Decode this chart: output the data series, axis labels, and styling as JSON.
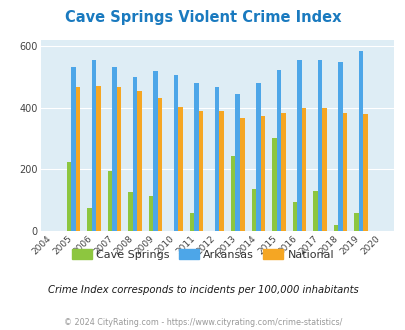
{
  "title": "Cave Springs Violent Crime Index",
  "years": [
    2004,
    2005,
    2006,
    2007,
    2008,
    2009,
    2010,
    2011,
    2012,
    2013,
    2014,
    2015,
    2016,
    2017,
    2018,
    2019,
    2020
  ],
  "cave_springs": [
    0,
    225,
    75,
    193,
    127,
    113,
    0,
    57,
    0,
    242,
    135,
    300,
    95,
    128,
    20,
    58,
    0
  ],
  "arkansas": [
    0,
    530,
    553,
    530,
    500,
    518,
    505,
    480,
    468,
    445,
    478,
    522,
    553,
    555,
    547,
    583,
    0
  ],
  "national": [
    0,
    468,
    469,
    465,
    453,
    430,
    403,
    388,
    388,
    366,
    373,
    383,
    400,
    397,
    383,
    379,
    0
  ],
  "cave_springs_color": "#8dc63f",
  "arkansas_color": "#4da6e8",
  "national_color": "#f5a623",
  "bg_color": "#deedf5",
  "ylim": [
    0,
    620
  ],
  "yticks": [
    0,
    200,
    400,
    600
  ],
  "legend_labels": [
    "Cave Springs",
    "Arkansas",
    "National"
  ],
  "subtitle": "Crime Index corresponds to incidents per 100,000 inhabitants",
  "footer": "© 2024 CityRating.com - https://www.cityrating.com/crime-statistics/",
  "title_color": "#1a7abf",
  "subtitle_color": "#1a1a1a",
  "footer_color": "#999999",
  "bar_width": 0.22
}
